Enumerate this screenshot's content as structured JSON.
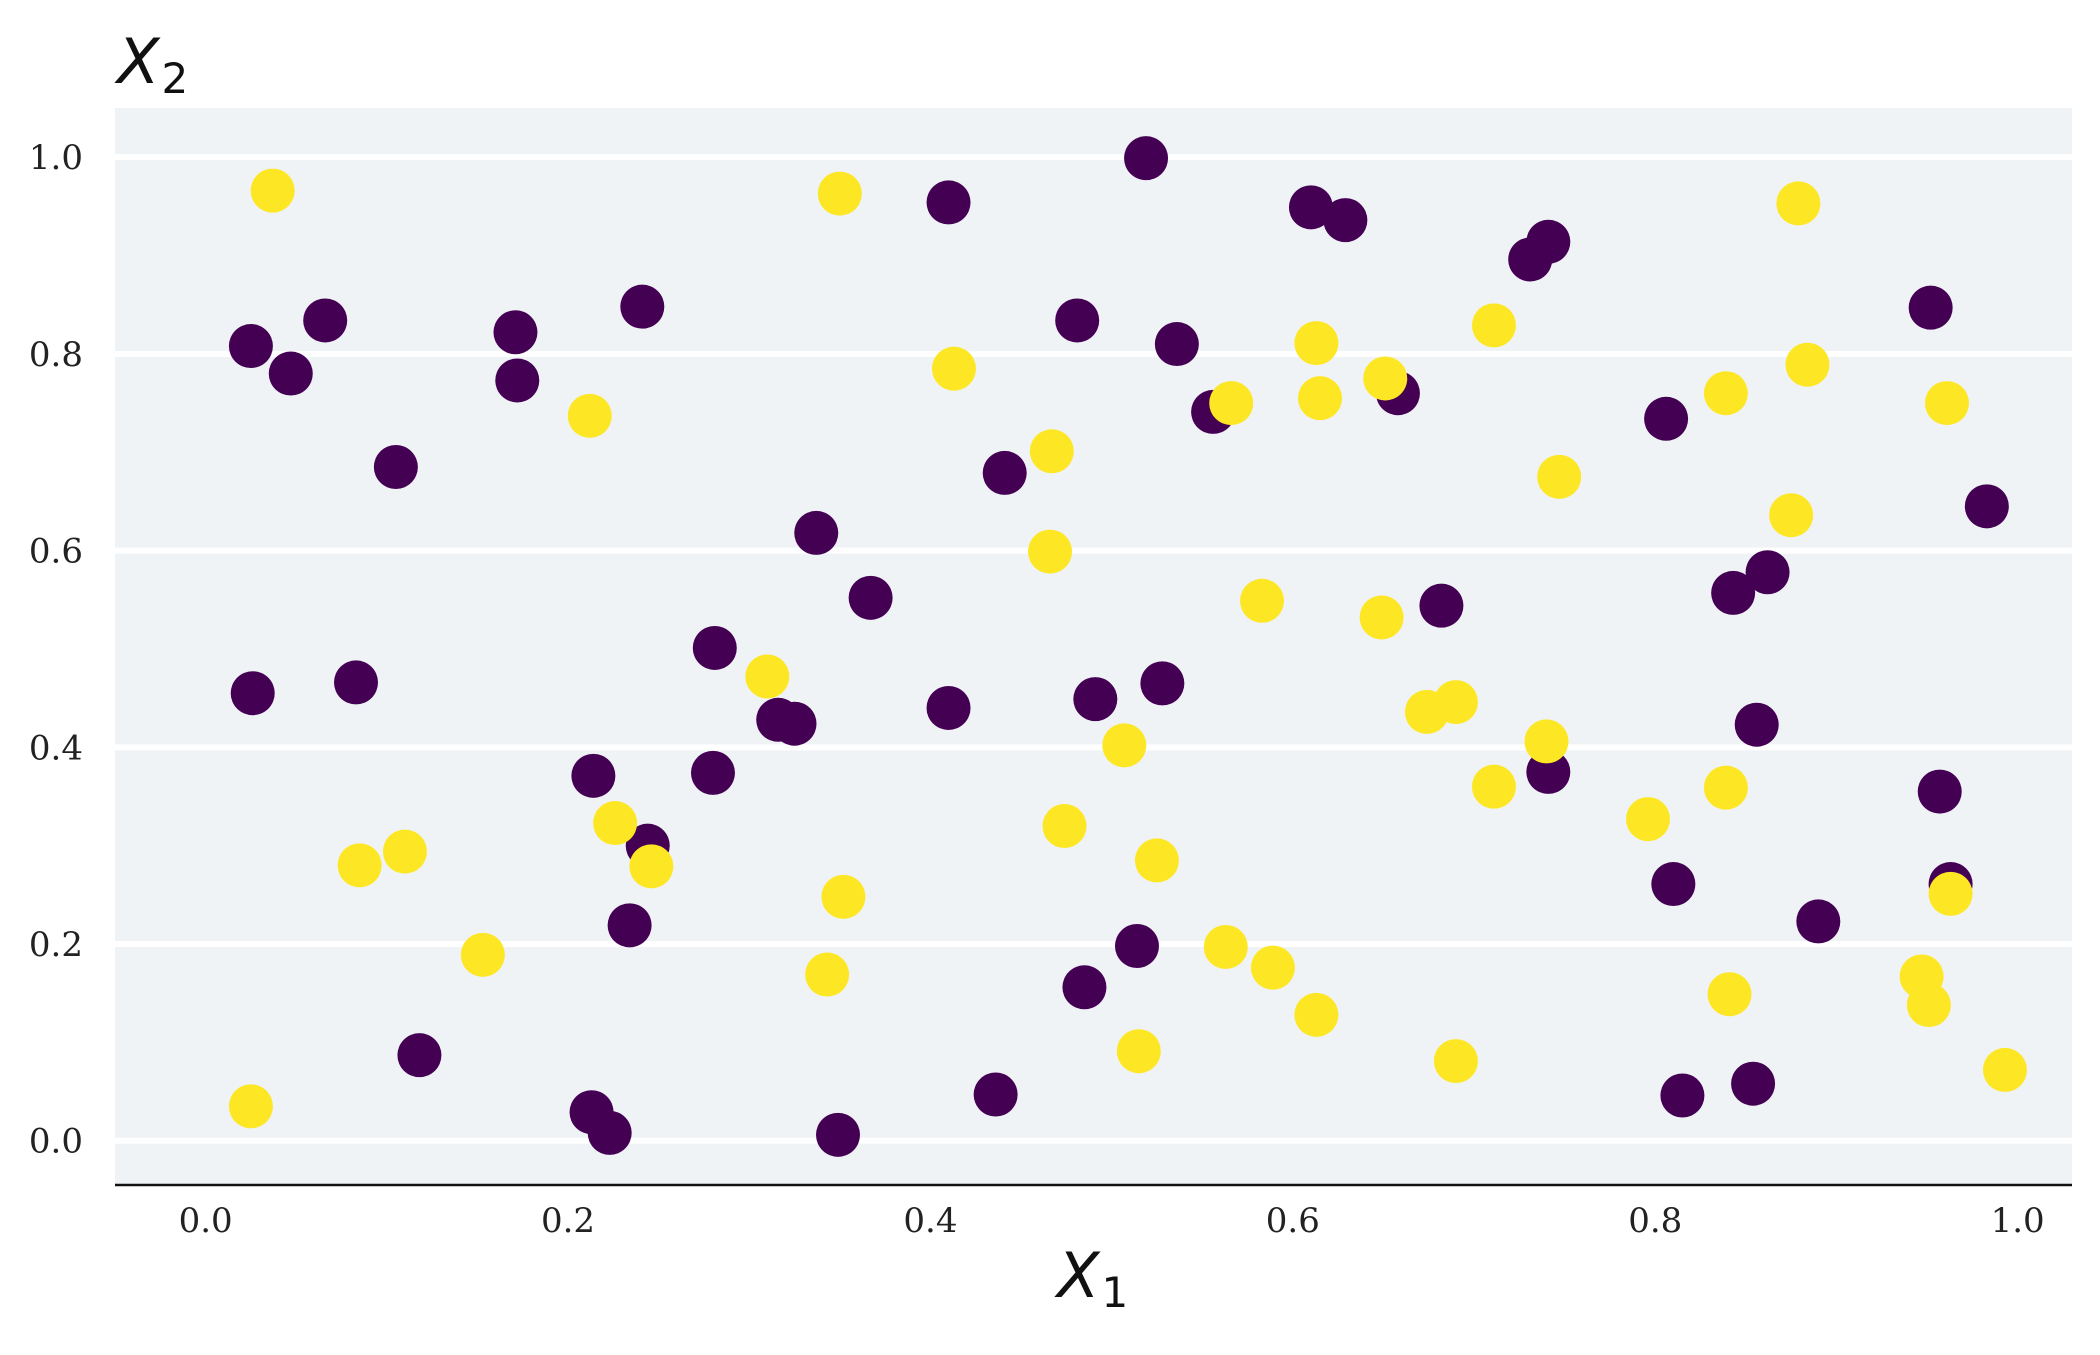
{
  "chart_data": {
    "type": "scatter",
    "title": "",
    "xlabel": {
      "main": "X",
      "sub": "1"
    },
    "ylabel": {
      "main": "X",
      "sub": "2"
    },
    "xlim": [
      -0.05,
      1.03
    ],
    "ylim": [
      -0.045,
      1.05
    ],
    "x_ticks": [
      0.0,
      0.2,
      0.4,
      0.6,
      0.8,
      1.0
    ],
    "x_tick_labels": [
      "0.0",
      "0.2",
      "0.4",
      "0.6",
      "0.8",
      "1.0"
    ],
    "y_ticks": [
      0.0,
      0.2,
      0.4,
      0.6,
      0.8,
      1.0
    ],
    "y_tick_labels": [
      "0.0",
      "0.2",
      "0.4",
      "0.6",
      "0.8",
      "1.0"
    ],
    "grid": "horizontal",
    "background": "#eff3f6",
    "legend": "none",
    "series": [
      {
        "color": "#440154",
        "points": [
          [
            0.025,
            0.808
          ],
          [
            0.047,
            0.78
          ],
          [
            0.066,
            0.834
          ],
          [
            0.105,
            0.685
          ],
          [
            0.171,
            0.822
          ],
          [
            0.172,
            0.773
          ],
          [
            0.241,
            0.848
          ],
          [
            0.337,
            0.618
          ],
          [
            0.367,
            0.552
          ],
          [
            0.41,
            0.954
          ],
          [
            0.441,
            0.679
          ],
          [
            0.481,
            0.834
          ],
          [
            0.519,
            0.999
          ],
          [
            0.536,
            0.81
          ],
          [
            0.556,
            0.741
          ],
          [
            0.61,
            0.949
          ],
          [
            0.629,
            0.936
          ],
          [
            0.658,
            0.76
          ],
          [
            0.731,
            0.896
          ],
          [
            0.741,
            0.914
          ],
          [
            0.806,
            0.734
          ],
          [
            0.952,
            0.847
          ],
          [
            0.983,
            0.645
          ],
          [
            0.026,
            0.455
          ],
          [
            0.083,
            0.466
          ],
          [
            0.281,
            0.501
          ],
          [
            0.316,
            0.428
          ],
          [
            0.325,
            0.424
          ],
          [
            0.41,
            0.44
          ],
          [
            0.491,
            0.449
          ],
          [
            0.528,
            0.465
          ],
          [
            0.682,
            0.544
          ],
          [
            0.843,
            0.557
          ],
          [
            0.862,
            0.578
          ],
          [
            0.856,
            0.423
          ],
          [
            0.214,
            0.371
          ],
          [
            0.28,
            0.374
          ],
          [
            0.244,
            0.3
          ],
          [
            0.234,
            0.219
          ],
          [
            0.118,
            0.087
          ],
          [
            0.213,
            0.029
          ],
          [
            0.223,
            0.008
          ],
          [
            0.349,
            0.006
          ],
          [
            0.436,
            0.047
          ],
          [
            0.485,
            0.156
          ],
          [
            0.514,
            0.198
          ],
          [
            0.741,
            0.375
          ],
          [
            0.81,
            0.261
          ],
          [
            0.815,
            0.046
          ],
          [
            0.854,
            0.058
          ],
          [
            0.89,
            0.223
          ],
          [
            0.957,
            0.355
          ],
          [
            0.963,
            0.261
          ]
        ]
      },
      {
        "color": "#fde725",
        "points": [
          [
            0.037,
            0.966
          ],
          [
            0.35,
            0.963
          ],
          [
            0.879,
            0.953
          ],
          [
            0.212,
            0.737
          ],
          [
            0.413,
            0.785
          ],
          [
            0.467,
            0.701
          ],
          [
            0.566,
            0.75
          ],
          [
            0.613,
            0.811
          ],
          [
            0.615,
            0.755
          ],
          [
            0.651,
            0.775
          ],
          [
            0.711,
            0.829
          ],
          [
            0.747,
            0.675
          ],
          [
            0.839,
            0.76
          ],
          [
            0.884,
            0.789
          ],
          [
            0.875,
            0.636
          ],
          [
            0.961,
            0.75
          ],
          [
            0.466,
            0.599
          ],
          [
            0.583,
            0.549
          ],
          [
            0.649,
            0.532
          ],
          [
            0.31,
            0.472
          ],
          [
            0.674,
            0.436
          ],
          [
            0.69,
            0.446
          ],
          [
            0.507,
            0.402
          ],
          [
            0.74,
            0.406
          ],
          [
            0.711,
            0.36
          ],
          [
            0.796,
            0.327
          ],
          [
            0.839,
            0.359
          ],
          [
            0.085,
            0.28
          ],
          [
            0.11,
            0.294
          ],
          [
            0.226,
            0.323
          ],
          [
            0.246,
            0.279
          ],
          [
            0.153,
            0.189
          ],
          [
            0.352,
            0.248
          ],
          [
            0.343,
            0.169
          ],
          [
            0.474,
            0.32
          ],
          [
            0.525,
            0.285
          ],
          [
            0.563,
            0.197
          ],
          [
            0.589,
            0.176
          ],
          [
            0.613,
            0.128
          ],
          [
            0.515,
            0.091
          ],
          [
            0.69,
            0.081
          ],
          [
            0.841,
            0.149
          ],
          [
            0.947,
            0.167
          ],
          [
            0.951,
            0.138
          ],
          [
            0.963,
            0.251
          ],
          [
            0.993,
            0.072
          ],
          [
            0.025,
            0.035
          ]
        ]
      }
    ]
  }
}
